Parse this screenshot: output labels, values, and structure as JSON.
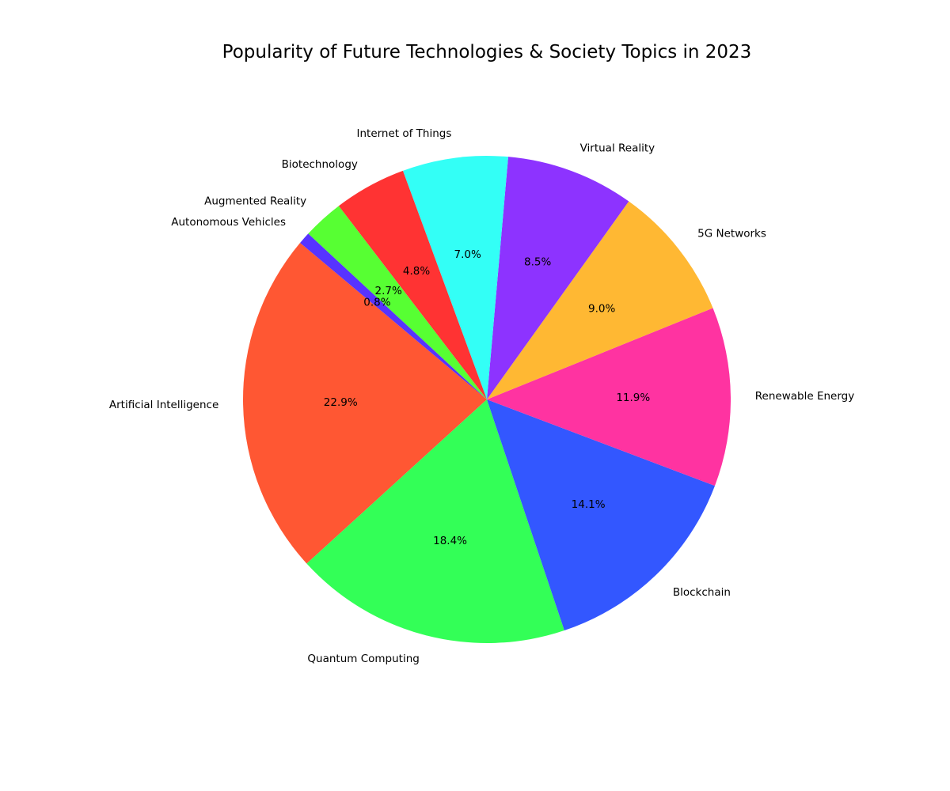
{
  "chart_data": {
    "type": "pie",
    "title": "Popularity of Future Technologies & Society Topics in 2023",
    "slices": [
      {
        "label": "Artificial Intelligence",
        "percent": 22.9,
        "pct_label": "22.9%",
        "color": "#FF5733"
      },
      {
        "label": "Quantum Computing",
        "percent": 18.4,
        "pct_label": "18.4%",
        "color": "#33FF57"
      },
      {
        "label": "Blockchain",
        "percent": 14.1,
        "pct_label": "14.1%",
        "color": "#3357FF"
      },
      {
        "label": "Renewable Energy",
        "percent": 11.9,
        "pct_label": "11.9%",
        "color": "#FF33A1"
      },
      {
        "label": "5G Networks",
        "percent": 9.0,
        "pct_label": "9.0%",
        "color": "#FFB833"
      },
      {
        "label": "Virtual Reality",
        "percent": 8.5,
        "pct_label": "8.5%",
        "color": "#8D33FF"
      },
      {
        "label": "Internet of Things",
        "percent": 7.0,
        "pct_label": "7.0%",
        "color": "#33FFF6"
      },
      {
        "label": "Biotechnology",
        "percent": 4.8,
        "pct_label": "4.8%",
        "color": "#FF3333"
      },
      {
        "label": "Augmented Reality",
        "percent": 2.7,
        "pct_label": "2.7%",
        "color": "#57FF33"
      },
      {
        "label": "Autonomous Vehicles",
        "percent": 0.8,
        "pct_label": "0.8%",
        "color": "#5733FF"
      }
    ],
    "start_angle_deg": 140,
    "direction": "counterclockwise",
    "legend": "none"
  }
}
